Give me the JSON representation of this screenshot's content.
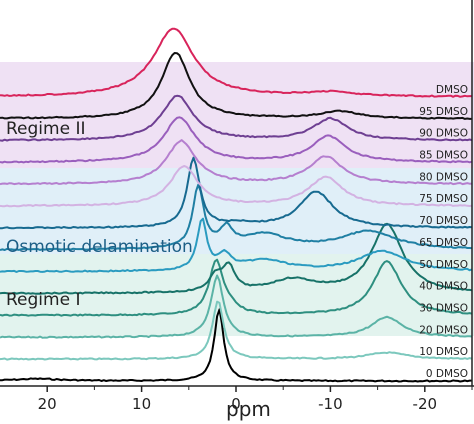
{
  "chart_data": {
    "type": "line",
    "title": "",
    "xlabel": "ppm",
    "ylabel": "",
    "xlim": [
      25,
      -25
    ],
    "x_ticks": [
      20,
      10,
      0,
      -10,
      -20
    ],
    "x_tick_labels": [
      "20",
      "10",
      "0",
      "-10",
      "-20"
    ],
    "grid": false,
    "legend": "none",
    "regions": [
      {
        "label": "Regime II",
        "color": "#e8d3ef",
        "label_color": "#222222"
      },
      {
        "label": "Osmotic delamination",
        "color": "#d6e9f5",
        "label_color": "#1d5f86"
      },
      {
        "label": "Regime I",
        "color": "#d9efe9",
        "label_color": "#222222"
      }
    ],
    "series": [
      {
        "name": "0 DMSO",
        "color": "#000000",
        "peaks": [
          {
            "x": 1.8,
            "height": 1.0,
            "width": 0.6
          },
          {
            "x": 21,
            "height": 0.03,
            "width": 3
          }
        ]
      },
      {
        "name": "10 DMSO",
        "color": "#7cc8bd",
        "peaks": [
          {
            "x": 1.9,
            "height": 0.82,
            "width": 0.7
          },
          {
            "x": -16,
            "height": 0.09,
            "width": 2.5
          }
        ]
      },
      {
        "name": "20 DMSO",
        "color": "#5bb3a6",
        "peaks": [
          {
            "x": 2.0,
            "height": 0.85,
            "width": 0.8
          },
          {
            "x": -16,
            "height": 0.28,
            "width": 2.0
          }
        ]
      },
      {
        "name": "30 DMSO",
        "color": "#2e8f80",
        "peaks": [
          {
            "x": 2.1,
            "height": 0.75,
            "width": 0.9
          },
          {
            "x": -16,
            "height": 0.75,
            "width": 1.8
          },
          {
            "x": 0.5,
            "height": 0.08,
            "width": 1.0
          }
        ]
      },
      {
        "name": "40 DMSO",
        "color": "#177268",
        "peaks": [
          {
            "x": 0.8,
            "height": 0.35,
            "width": 0.8
          },
          {
            "x": 2.2,
            "height": 0.2,
            "width": 0.8
          },
          {
            "x": -16,
            "height": 0.95,
            "width": 2.0
          },
          {
            "x": -6,
            "height": 0.18,
            "width": 3.0
          }
        ]
      },
      {
        "name": "50 DMSO",
        "color": "#2a9bc0",
        "peaks": [
          {
            "x": 3.6,
            "height": 0.7,
            "width": 0.6
          },
          {
            "x": 1.2,
            "height": 0.2,
            "width": 0.8
          },
          {
            "x": -3,
            "height": 0.15,
            "width": 3.0
          },
          {
            "x": -15.5,
            "height": 0.28,
            "width": 3.0
          }
        ]
      },
      {
        "name": "65 DMSO",
        "color": "#1f7fa3",
        "peaks": [
          {
            "x": 4.0,
            "height": 0.85,
            "width": 0.7
          },
          {
            "x": 1.0,
            "height": 0.25,
            "width": 0.8
          },
          {
            "x": -3,
            "height": 0.2,
            "width": 3.0
          },
          {
            "x": -14,
            "height": 0.25,
            "width": 3.5
          }
        ]
      },
      {
        "name": "70 DMSO",
        "color": "#176a90",
        "peaks": [
          {
            "x": 4.5,
            "height": 0.95,
            "width": 0.8
          },
          {
            "x": -8.5,
            "height": 0.5,
            "width": 2.2
          },
          {
            "x": -0.5,
            "height": 0.05,
            "width": 2.0
          }
        ]
      },
      {
        "name": "75 DMSO",
        "color": "#d3b2e2",
        "peaks": [
          {
            "x": 5.5,
            "height": 0.55,
            "width": 1.8
          },
          {
            "x": -9.5,
            "height": 0.4,
            "width": 2.2
          }
        ]
      },
      {
        "name": "80 DMSO",
        "color": "#b57fcf",
        "peaks": [
          {
            "x": 5.8,
            "height": 0.6,
            "width": 1.9
          },
          {
            "x": -9.5,
            "height": 0.38,
            "width": 2.2
          }
        ]
      },
      {
        "name": "85 DMSO",
        "color": "#9a5fbd",
        "peaks": [
          {
            "x": 6.0,
            "height": 0.62,
            "width": 2.0
          },
          {
            "x": -9.8,
            "height": 0.36,
            "width": 2.2
          }
        ]
      },
      {
        "name": "90 DMSO",
        "color": "#6e3f92",
        "peaks": [
          {
            "x": 6.2,
            "height": 0.62,
            "width": 2.0
          },
          {
            "x": -10,
            "height": 0.3,
            "width": 2.2
          }
        ]
      },
      {
        "name": "95 DMSO",
        "color": "#111111",
        "peaks": [
          {
            "x": 6.4,
            "height": 0.92,
            "width": 1.8
          },
          {
            "x": -11,
            "height": 0.1,
            "width": 2.5
          }
        ]
      },
      {
        "name": "DMSO",
        "color": "#d8245b",
        "peaks": [
          {
            "x": 6.6,
            "height": 0.95,
            "width": 2.6
          },
          {
            "x": -10,
            "height": 0.06,
            "width": 3.0
          }
        ]
      }
    ]
  }
}
